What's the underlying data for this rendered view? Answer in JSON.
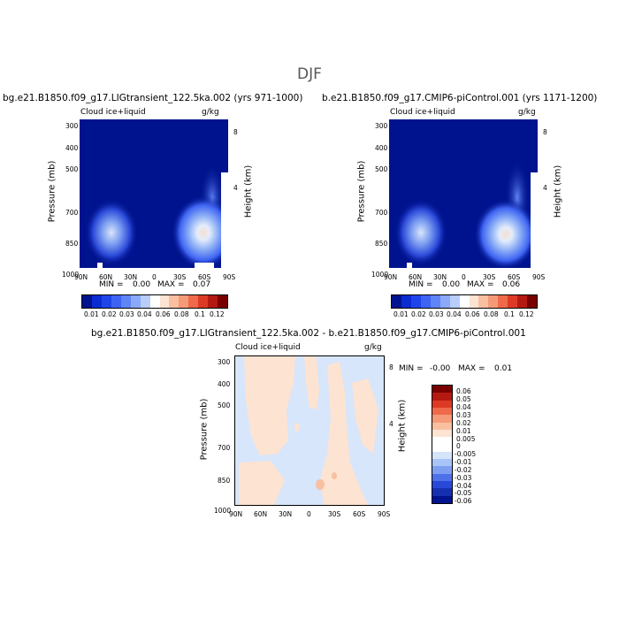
{
  "figure": {
    "title": "DJF"
  },
  "chart_data": [
    {
      "type": "heatmap",
      "title": "bg.e21.B1850.f09_g17.LIGtransient_122.5ka.002 (yrs 971-1000)",
      "variable": "Cloud ice+liquid",
      "units": "g/kg",
      "xlabel": "",
      "ylabel": "Pressure (mb)",
      "y2label": "Height (km)",
      "x_ticks": [
        "90N",
        "60N",
        "30N",
        "0",
        "30S",
        "60S",
        "90S"
      ],
      "y_ticks": [
        "300",
        "400",
        "500",
        "700",
        "850",
        "1000"
      ],
      "y2_ticks": [
        "8",
        "4"
      ],
      "min_label": "MIN =",
      "min_value": "0.00",
      "max_label": "MAX =",
      "max_value": "0.07",
      "colorbar_labels": [
        "0.01",
        "0.02",
        "0.03",
        "0.04",
        "0.06",
        "0.08",
        "0.1",
        "0.12"
      ],
      "colorbar_colors": [
        "#00138f",
        "#0a2cd0",
        "#1f45ea",
        "#3d63f2",
        "#5f84f6",
        "#8ba9f8",
        "#b8cdf8",
        "#ffffff",
        "#fde3d2",
        "#f8c0a0",
        "#f49a76",
        "#ee6a4a",
        "#dd3a25",
        "#b41a12",
        "#7a0000"
      ]
    },
    {
      "type": "heatmap",
      "title": "b.e21.B1850.f09_g17.CMIP6-piControl.001 (yrs 1171-1200)",
      "variable": "Cloud ice+liquid",
      "units": "g/kg",
      "xlabel": "",
      "ylabel": "Pressure (mb)",
      "y2label": "Height (km)",
      "x_ticks": [
        "90N",
        "60N",
        "30N",
        "0",
        "30S",
        "60S",
        "90S"
      ],
      "y_ticks": [
        "300",
        "400",
        "500",
        "700",
        "850",
        "1000"
      ],
      "y2_ticks": [
        "8",
        "4"
      ],
      "min_label": "MIN =",
      "min_value": "0.00",
      "max_label": "MAX =",
      "max_value": "0.06",
      "colorbar_labels": [
        "0.01",
        "0.02",
        "0.03",
        "0.04",
        "0.06",
        "0.08",
        "0.1",
        "0.12"
      ],
      "colorbar_colors": [
        "#00138f",
        "#0a2cd0",
        "#1f45ea",
        "#3d63f2",
        "#5f84f6",
        "#8ba9f8",
        "#b8cdf8",
        "#ffffff",
        "#fde3d2",
        "#f8c0a0",
        "#f49a76",
        "#ee6a4a",
        "#dd3a25",
        "#b41a12",
        "#7a0000"
      ]
    },
    {
      "type": "heatmap",
      "title": "bg.e21.B1850.f09_g17.LIGtransient_122.5ka.002 - b.e21.B1850.f09_g17.CMIP6-piControl.001",
      "variable": "Cloud ice+liquid",
      "units": "g/kg",
      "xlabel": "",
      "ylabel": "Pressure (mb)",
      "y2label": "Height (km)",
      "x_ticks": [
        "90N",
        "60N",
        "30N",
        "0",
        "30S",
        "60S",
        "90S"
      ],
      "y_ticks": [
        "300",
        "400",
        "500",
        "700",
        "850",
        "1000"
      ],
      "y2_ticks": [
        "8",
        "4"
      ],
      "min_label": "MIN =",
      "min_value": "-0.00",
      "max_label": "MAX =",
      "max_value": "0.01",
      "colorbar_labels": [
        "0.06",
        "0.05",
        "0.04",
        "0.03",
        "0.02",
        "0.01",
        "0.005",
        "0",
        "-0.005",
        "-0.01",
        "-0.02",
        "-0.03",
        "-0.04",
        "-0.05",
        "-0.06"
      ],
      "colorbar_colors": [
        "#7a0000",
        "#b41a12",
        "#dd3a25",
        "#ee6a4a",
        "#f49a76",
        "#f8c0a0",
        "#fde3d2",
        "#ffffff",
        "#ffffff",
        "#d4e4fb",
        "#a9c4f6",
        "#7e9ff1",
        "#4e70e8",
        "#2a48d8",
        "#1730b0",
        "#00138f"
      ]
    }
  ]
}
